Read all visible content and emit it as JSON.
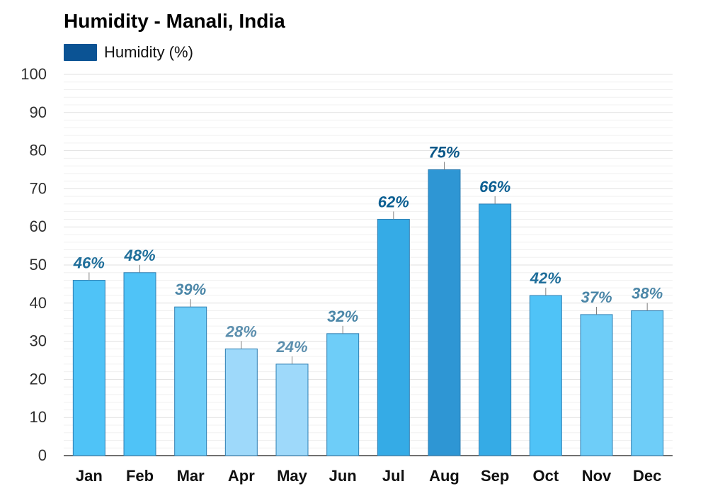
{
  "title": "Humidity - Manali, India",
  "legend": {
    "label": "Humidity (%)",
    "color": "#0B5394"
  },
  "chart_data": {
    "type": "bar",
    "title": "Humidity - Manali, India",
    "xlabel": "",
    "ylabel": "",
    "ylim": [
      0,
      100
    ],
    "yticks": [
      "0",
      "10",
      "20",
      "30",
      "40",
      "50",
      "60",
      "70",
      "80",
      "90",
      "100"
    ],
    "grid": true,
    "legend_position": "top-left",
    "categories": [
      "Jan",
      "Feb",
      "Mar",
      "Apr",
      "May",
      "Jun",
      "Jul",
      "Aug",
      "Sep",
      "Oct",
      "Nov",
      "Dec"
    ],
    "series": [
      {
        "name": "Humidity (%)",
        "values": [
          46,
          48,
          39,
          28,
          24,
          32,
          62,
          75,
          66,
          42,
          37,
          38
        ],
        "labels": [
          "46%",
          "48%",
          "39%",
          "28%",
          "24%",
          "32%",
          "62%",
          "75%",
          "66%",
          "42%",
          "37%",
          "38%"
        ],
        "colors": [
          "#4FC3F7",
          "#4FC3F7",
          "#6ECDF8",
          "#9ED9FA",
          "#9ED9FA",
          "#6ECDF8",
          "#35ABE6",
          "#2E96D4",
          "#35ABE6",
          "#4FC3F7",
          "#6ECDF8",
          "#6ECDF8"
        ],
        "label_colors": [
          "#1F6E9A",
          "#1F6E9A",
          "#4C87A8",
          "#5C8FAE",
          "#5C8FAE",
          "#4C87A8",
          "#0C5F92",
          "#0A5788",
          "#0C5F92",
          "#1F6E9A",
          "#4C87A8",
          "#4C87A8"
        ]
      }
    ]
  }
}
